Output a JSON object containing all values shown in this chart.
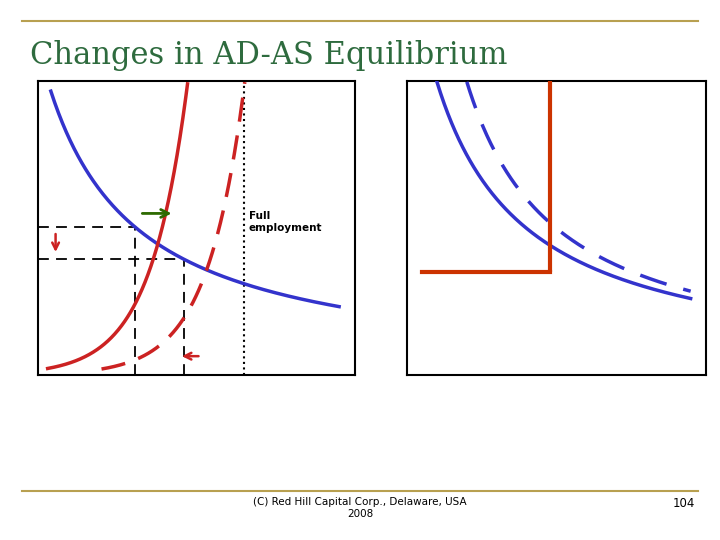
{
  "title": "Changes in AD-AS Equilibrium",
  "title_color": "#2e6b3e",
  "title_fontsize": 22,
  "footer_text": "(C) Red Hill Capital Corp., Delaware, USA\n2008",
  "page_number": "104",
  "background_color": "#ffffff",
  "border_color": "#b8a050",
  "full_employment_label": "Full\nemployment",
  "blue_color": "#3333cc",
  "red_color": "#cc2222",
  "green_color": "#2d6a00",
  "orange_red_color": "#cc3300"
}
